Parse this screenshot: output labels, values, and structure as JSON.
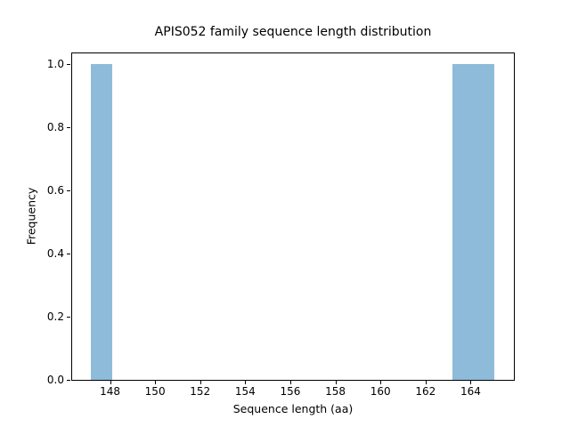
{
  "figure": {
    "background_color": "#ffffff"
  },
  "chart_data": {
    "type": "bar",
    "subtype": "histogram",
    "title": "APIS052 family sequence length distribution",
    "xlabel": "Sequence length (aa)",
    "ylabel": "Frequency",
    "x_ticks": [
      148,
      150,
      152,
      154,
      156,
      158,
      160,
      162,
      164
    ],
    "x_tick_labels": [
      "148",
      "150",
      "152",
      "154",
      "156",
      "158",
      "160",
      "162",
      "164"
    ],
    "y_ticks": [
      0.0,
      0.2,
      0.4,
      0.6,
      0.8,
      1.0
    ],
    "y_tick_labels": [
      "0.0",
      "0.2",
      "0.4",
      "0.6",
      "0.8",
      "1.0"
    ],
    "xlim": [
      146.28,
      165.92
    ],
    "ylim": [
      0,
      1.037
    ],
    "bars": [
      {
        "x_start": 147.15,
        "x_end": 148.1,
        "frequency": 1.0
      },
      {
        "x_start": 163.2,
        "x_end": 165.05,
        "frequency": 1.0
      }
    ],
    "bar_color": "#8fbbda",
    "axis_color": "#000000",
    "text_color": "#000000",
    "grid": false,
    "legend": false
  }
}
